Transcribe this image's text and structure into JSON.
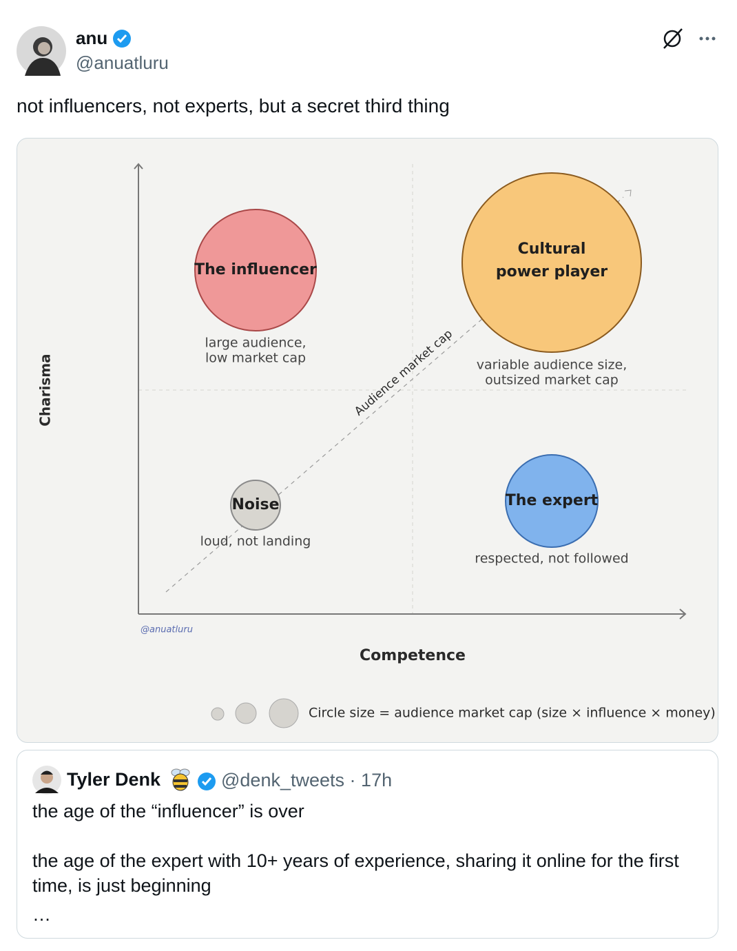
{
  "tweet": {
    "author": {
      "name": "anu",
      "handle": "@anuatluru"
    },
    "text": "not influencers, not experts, but a secret third thing",
    "image": {
      "y_axis_label": "Charisma",
      "x_axis_label": "Competence",
      "diagonal_label": "Audience market cap",
      "watermark": "@anuatluru",
      "nodes": [
        {
          "label": [
            "The influencer"
          ],
          "caption": [
            "large audience,",
            "low market cap"
          ]
        },
        {
          "label": [
            "Cultural",
            "power player"
          ],
          "caption": [
            "variable audience size,",
            "outsized market cap"
          ]
        },
        {
          "label": [
            "Noise"
          ],
          "caption": [
            "loud, not landing"
          ]
        },
        {
          "label": [
            "The expert"
          ],
          "caption": [
            "respected, not followed"
          ]
        }
      ],
      "legend": "Circle size = audience market cap (size × influence × money)"
    }
  },
  "quoted_tweet": {
    "author": {
      "name": "Tyler Denk",
      "handle": "@denk_tweets"
    },
    "separator": "·",
    "time": "17h",
    "paragraphs": [
      "the age of the “influencer” is over",
      "the age of the expert with 10+ years of experience, sharing it online for the first time, is just beginning",
      "…"
    ]
  }
}
